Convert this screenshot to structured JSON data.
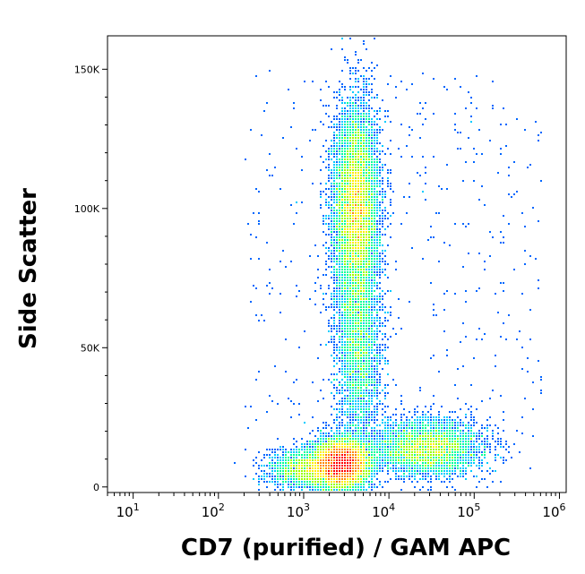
{
  "chart_data": {
    "type": "scatter",
    "title": "",
    "xlabel": "CD7 (purified) / GAM APC",
    "ylabel": "Side Scatter",
    "x_scale": "log",
    "xlim": [
      5,
      1200000
    ],
    "ylim": [
      -2000,
      162000
    ],
    "x_ticks": [
      {
        "value": 10,
        "base": "10",
        "exp": "1"
      },
      {
        "value": 100,
        "base": "10",
        "exp": "2"
      },
      {
        "value": 1000,
        "base": "10",
        "exp": "3"
      },
      {
        "value": 10000,
        "base": "10",
        "exp": "4"
      },
      {
        "value": 100000,
        "base": "10",
        "exp": "5"
      },
      {
        "value": 1000000,
        "base": "10",
        "exp": "6"
      }
    ],
    "y_ticks": [
      {
        "value": 0,
        "label": "0"
      },
      {
        "value": 50000,
        "label": "50K"
      },
      {
        "value": 100000,
        "label": "100K"
      },
      {
        "value": 150000,
        "label": "150K"
      }
    ],
    "density_colors": [
      "#0000ff",
      "#0066ff",
      "#00ccff",
      "#00ff99",
      "#99ff00",
      "#ffee00",
      "#ff8800",
      "#ff0000"
    ],
    "populations": [
      {
        "name_hint": "upper",
        "log_center_x": 3.62,
        "log_spread_x": 0.13,
        "center_y": 100000,
        "spread_y": 18000,
        "weight": 0.34
      },
      {
        "name_hint": "stalk",
        "log_center_x": 3.65,
        "log_spread_x": 0.13,
        "center_y": 50000,
        "spread_y": 18000,
        "weight": 0.12
      },
      {
        "name_hint": "low-dense",
        "log_center_x": 3.45,
        "log_spread_x": 0.16,
        "center_y": 8000,
        "spread_y": 4500,
        "weight": 0.3
      },
      {
        "name_hint": "shoulder",
        "log_center_x": 4.45,
        "log_spread_x": 0.32,
        "center_y": 14000,
        "spread_y": 5000,
        "weight": 0.16
      },
      {
        "name_hint": "low-left",
        "log_center_x": 3.05,
        "log_spread_x": 0.22,
        "center_y": 6000,
        "spread_y": 3500,
        "weight": 0.08
      }
    ]
  }
}
